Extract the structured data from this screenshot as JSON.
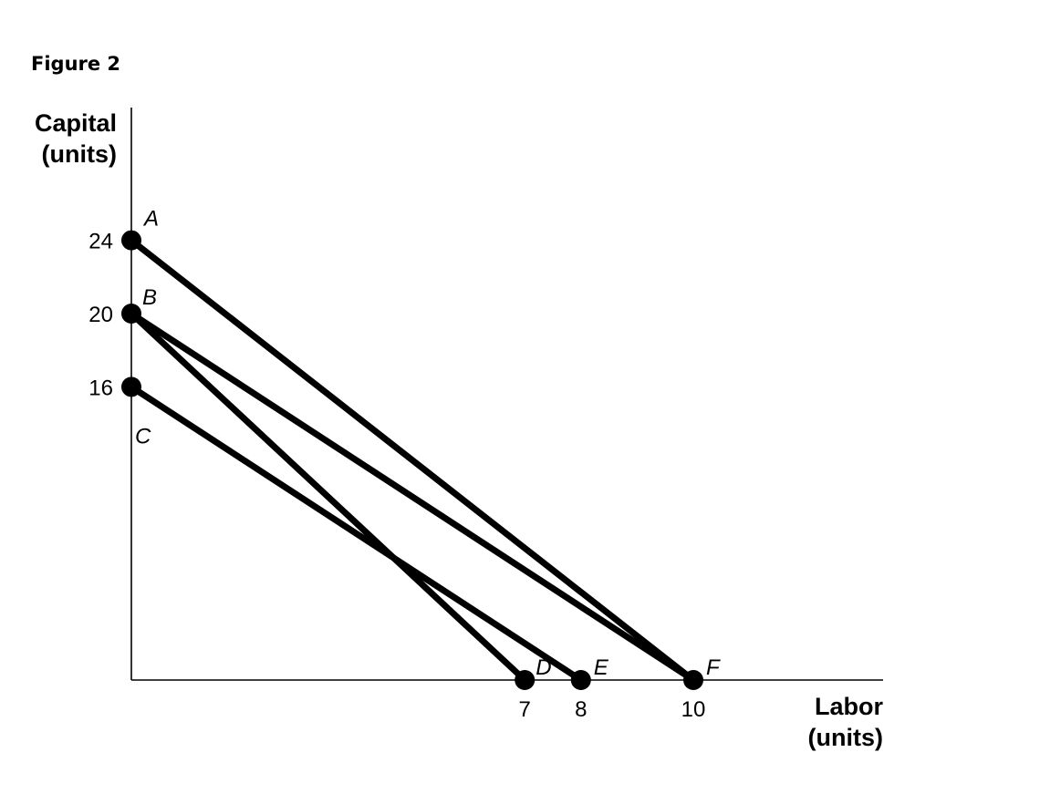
{
  "figure_title": "Figure 2",
  "chart_data": {
    "type": "line",
    "title": "",
    "xlabel_line1": "Labor",
    "xlabel_line2": "(units)",
    "ylabel_line1": "Capital",
    "ylabel_line2": "(units)",
    "xlim": [
      0,
      13.5
    ],
    "ylim": [
      0,
      30
    ],
    "x_ticks": [
      7,
      8,
      10
    ],
    "y_ticks": [
      16,
      20,
      24
    ],
    "grid": false,
    "points": [
      {
        "label": "A",
        "x": 0,
        "y": 24
      },
      {
        "label": "B",
        "x": 0,
        "y": 20
      },
      {
        "label": "C",
        "x": 0,
        "y": 16
      },
      {
        "label": "D",
        "x": 7,
        "y": 0
      },
      {
        "label": "E",
        "x": 8,
        "y": 0
      },
      {
        "label": "F",
        "x": 10,
        "y": 0
      }
    ],
    "segments": [
      {
        "from": "A",
        "to": "F"
      },
      {
        "from": "B",
        "to": "F"
      },
      {
        "from": "B",
        "to": "D"
      },
      {
        "from": "C",
        "to": "E"
      }
    ],
    "line_color": "#000000"
  }
}
